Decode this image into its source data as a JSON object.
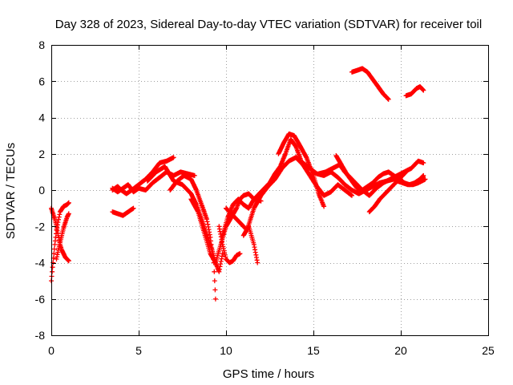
{
  "chart_data": {
    "type": "scatter",
    "title": "Day 328 of 2023, Sidereal Day-to-day VTEC variation (SDTVAR) for receiver toil",
    "xlabel": "GPS time / hours",
    "ylabel": "SDTVAR / TECUs",
    "xlim": [
      0,
      25
    ],
    "ylim": [
      -8,
      8
    ],
    "x_ticks": [
      0,
      5,
      10,
      15,
      20,
      25
    ],
    "y_ticks": [
      -8,
      -6,
      -4,
      -2,
      0,
      2,
      4,
      6,
      8
    ],
    "x_tick_labels": [
      "0",
      "5",
      "10",
      "15",
      "20",
      "25"
    ],
    "y_tick_labels": [
      "-8",
      "-6",
      "-4",
      "-2",
      "0",
      "2",
      "4",
      "6",
      "8"
    ],
    "grid": true,
    "marker": "plus",
    "color": "#ff0000",
    "series": [
      {
        "name": "s1",
        "x": [
          0.0,
          0.1,
          0.2,
          0.3,
          0.5,
          0.7,
          0.9,
          1.0
        ],
        "y": [
          -5.0,
          -4.0,
          -3.0,
          -2.2,
          -1.2,
          -0.9,
          -0.8,
          -0.7
        ]
      },
      {
        "name": "s2",
        "x": [
          0.0,
          0.1,
          0.2,
          0.3,
          0.4,
          0.5,
          0.6,
          0.7,
          0.8,
          0.9,
          1.0
        ],
        "y": [
          -1.0,
          -1.3,
          -1.6,
          -2.0,
          -2.5,
          -3.0,
          -3.3,
          -3.5,
          -3.7,
          -3.8,
          -3.9
        ]
      },
      {
        "name": "s3",
        "x": [
          0.3,
          0.4,
          0.5,
          0.6,
          0.7,
          0.8,
          0.9,
          1.0
        ],
        "y": [
          -3.8,
          -3.3,
          -2.9,
          -2.5,
          -2.1,
          -1.8,
          -1.5,
          -1.3
        ]
      },
      {
        "name": "s4",
        "x": [
          3.5,
          3.8,
          4.0,
          4.3,
          4.6,
          5.0,
          5.4,
          5.8,
          6.2,
          6.6,
          7.0
        ],
        "y": [
          0.0,
          0.2,
          0.0,
          -0.2,
          0.0,
          0.3,
          0.6,
          1.0,
          1.5,
          1.6,
          1.8
        ]
      },
      {
        "name": "s5",
        "x": [
          3.5,
          3.8,
          4.1,
          4.4,
          4.7,
          5.0,
          5.4,
          5.8,
          6.2,
          6.6,
          7.0,
          7.4,
          7.8,
          8.2
        ],
        "y": [
          0.1,
          -0.1,
          0.1,
          0.3,
          -0.1,
          0.1,
          0.0,
          0.4,
          0.7,
          1.0,
          0.8,
          1.0,
          0.9,
          0.8
        ]
      },
      {
        "name": "s6",
        "x": [
          3.5,
          3.8,
          4.1,
          4.4,
          4.7
        ],
        "y": [
          -1.2,
          -1.3,
          -1.4,
          -1.2,
          -1.0
        ]
      },
      {
        "name": "s7",
        "x": [
          5.5,
          6.0,
          6.5,
          7.0,
          7.5,
          8.0,
          8.3,
          8.6,
          8.9,
          9.2,
          9.4,
          9.6,
          9.8
        ],
        "y": [
          0.5,
          1.0,
          1.3,
          0.5,
          0.3,
          -0.2,
          -0.8,
          -1.6,
          -2.5,
          -3.3,
          -4.0,
          -4.5,
          -3.5
        ]
      },
      {
        "name": "s8",
        "x": [
          6.8,
          7.2,
          7.6,
          8.0,
          8.3,
          8.6,
          8.9,
          9.1,
          9.3,
          9.4
        ],
        "y": [
          0.0,
          0.5,
          0.8,
          0.6,
          0.0,
          -0.8,
          -1.6,
          -2.6,
          -4.0,
          -6.0
        ]
      },
      {
        "name": "s9",
        "x": [
          8.0,
          8.4,
          8.8,
          9.1,
          9.4,
          9.7,
          10.0,
          10.3,
          10.6,
          10.8,
          11.0,
          11.3,
          11.6,
          12.0
        ],
        "y": [
          -0.5,
          -1.2,
          -2.5,
          -3.5,
          -4.0,
          -3.0,
          -2.0,
          -1.5,
          -1.0,
          -0.5,
          -0.3,
          -0.2,
          -0.5,
          -0.6
        ]
      },
      {
        "name": "s10",
        "x": [
          9.6,
          9.8,
          10.0,
          10.2,
          10.4,
          10.6,
          10.8
        ],
        "y": [
          -2.0,
          -3.0,
          -3.8,
          -4.0,
          -3.9,
          -3.6,
          -3.5
        ]
      },
      {
        "name": "s11",
        "x": [
          9.8,
          10.1,
          10.4,
          10.7,
          11.0,
          11.3,
          11.6,
          11.9,
          12.2,
          12.5,
          12.8,
          13.1,
          13.4,
          13.7,
          14.0,
          14.3
        ],
        "y": [
          -2.5,
          -1.5,
          -0.8,
          -0.5,
          -0.8,
          -1.0,
          -0.5,
          -0.2,
          0.1,
          0.4,
          0.9,
          1.3,
          2.0,
          2.8,
          2.4,
          1.6
        ]
      },
      {
        "name": "s12",
        "x": [
          10.0,
          10.4,
          10.8,
          11.2,
          11.6,
          12.0,
          12.4,
          12.8,
          13.2,
          13.6,
          14.0,
          14.4,
          14.8,
          15.2,
          15.6,
          16.0,
          16.4,
          16.8,
          17.2,
          17.6,
          18.0,
          18.4,
          18.8,
          19.2,
          19.6,
          20.0
        ],
        "y": [
          -1.0,
          -1.4,
          -1.8,
          -2.2,
          -1.0,
          -0.3,
          0.2,
          0.6,
          1.2,
          1.6,
          1.8,
          1.5,
          1.2,
          0.9,
          0.8,
          1.0,
          0.7,
          0.3,
          0.0,
          -0.2,
          0.0,
          0.2,
          0.4,
          0.5,
          0.6,
          0.6
        ]
      },
      {
        "name": "s13",
        "x": [
          11.0,
          11.3,
          11.6,
          11.8
        ],
        "y": [
          -2.5,
          -2.0,
          -3.0,
          -4.0
        ]
      },
      {
        "name": "s14",
        "x": [
          13.0,
          13.3,
          13.6,
          13.9,
          14.2,
          14.6,
          15.0,
          15.3,
          15.6
        ],
        "y": [
          2.0,
          2.6,
          3.1,
          3.0,
          2.5,
          1.8,
          0.8,
          -0.2,
          -0.9
        ]
      },
      {
        "name": "s15",
        "x": [
          14.0,
          14.4,
          14.8,
          15.2,
          15.6,
          16.0,
          16.4,
          16.8,
          17.2
        ],
        "y": [
          1.8,
          1.4,
          0.8,
          0.2,
          -0.3,
          -0.1,
          0.3,
          0.0,
          -0.3
        ]
      },
      {
        "name": "s16",
        "x": [
          15.3,
          15.7,
          16.1,
          16.5,
          16.8,
          17.1,
          17.4,
          17.8,
          18.2,
          18.6,
          19.0,
          19.4,
          19.8,
          20.2,
          20.6,
          21.0,
          21.3
        ],
        "y": [
          0.9,
          1.0,
          1.2,
          1.4,
          1.0,
          0.7,
          0.4,
          0.0,
          -0.3,
          0.1,
          0.4,
          0.6,
          0.8,
          1.0,
          1.2,
          1.6,
          1.5
        ]
      },
      {
        "name": "s17",
        "x": [
          16.3,
          16.6,
          16.9,
          17.2,
          17.5,
          17.8,
          18.1,
          18.4,
          18.7,
          19.0,
          19.3,
          19.6,
          19.9,
          20.2,
          20.5,
          20.8,
          21.1,
          21.3
        ],
        "y": [
          1.9,
          1.4,
          0.9,
          0.5,
          0.1,
          0.0,
          0.2,
          0.4,
          0.7,
          0.9,
          1.0,
          0.8,
          0.6,
          0.4,
          0.3,
          0.4,
          0.6,
          0.8
        ]
      },
      {
        "name": "s18",
        "x": [
          18.2,
          18.5,
          18.8,
          19.1,
          19.4,
          19.7,
          20.0,
          20.3
        ],
        "y": [
          -1.2,
          -0.9,
          -0.5,
          -0.2,
          0.1,
          0.4,
          0.7,
          1.0
        ]
      },
      {
        "name": "s19",
        "x": [
          17.2,
          17.5,
          17.8,
          18.1,
          18.4,
          18.7,
          19.0,
          19.3
        ],
        "y": [
          6.5,
          6.6,
          6.7,
          6.5,
          6.1,
          5.7,
          5.3,
          5.0
        ]
      },
      {
        "name": "s20",
        "x": [
          20.3,
          20.6,
          20.9,
          21.1,
          21.3
        ],
        "y": [
          5.2,
          5.3,
          5.6,
          5.7,
          5.5
        ]
      },
      {
        "name": "s21",
        "x": [
          19.8,
          20.1,
          20.4,
          20.7,
          21.0,
          21.2,
          21.4
        ],
        "y": [
          0.5,
          0.4,
          0.3,
          0.3,
          0.4,
          0.5,
          0.6
        ]
      }
    ]
  }
}
